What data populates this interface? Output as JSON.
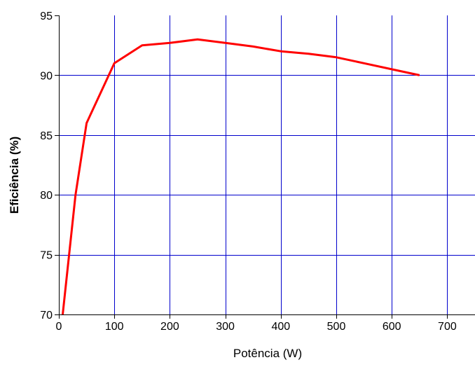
{
  "chart_data": {
    "type": "line",
    "title": "",
    "xlabel": "Potência (W)",
    "ylabel": "Eficiência (%)",
    "xlim": [
      0,
      750
    ],
    "ylim": [
      70,
      95
    ],
    "xticks": [
      0,
      100,
      200,
      300,
      400,
      500,
      600,
      700
    ],
    "yticks": [
      70,
      75,
      80,
      85,
      90,
      95
    ],
    "xtick_labels": [
      "0",
      "100",
      "200",
      "300",
      "400",
      "500",
      "600",
      "700"
    ],
    "ytick_labels": [
      "70",
      "75",
      "80",
      "85",
      "90",
      "95"
    ],
    "grid": true,
    "series": [
      {
        "x": [
          7,
          30,
          50,
          100,
          150,
          200,
          250,
          300,
          350,
          400,
          450,
          500,
          550,
          600,
          650
        ],
        "y": [
          70,
          80,
          86,
          91,
          92.5,
          92.7,
          93,
          92.7,
          92.4,
          92,
          91.8,
          91.5,
          91,
          90.5,
          90
        ],
        "color": "#ff0000"
      }
    ],
    "grid_color": "#0000cc",
    "axis_color": "#000000"
  }
}
